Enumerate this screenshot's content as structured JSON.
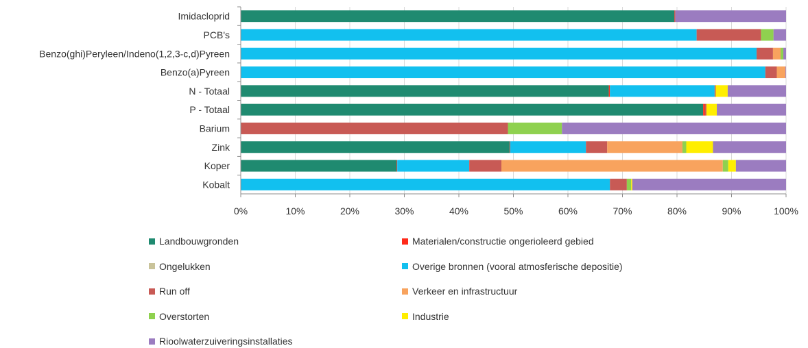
{
  "chart_data": {
    "type": "bar",
    "orientation": "horizontal",
    "stacked": "percent",
    "categories": [
      "Imidacloprid",
      "PCB's",
      "Benzo(ghi)Peryleen/Indeno(1,2,3-c,d)Pyreen",
      "Benzo(a)Pyreen",
      "N - Totaal",
      "P - Totaal",
      "Barium",
      "Zink",
      "Koper",
      "Kobalt"
    ],
    "series": [
      {
        "name": "Landbouwgronden",
        "color": "#1f8a70",
        "values": [
          79.5,
          0,
          0,
          0,
          67.5,
          84.8,
          0,
          49.3,
          28.6,
          0
        ]
      },
      {
        "name": "Materialen/constructie ongerioleerd gebied",
        "color": "#ff2a1a",
        "values": [
          0,
          0,
          0,
          0,
          0.2,
          0.3,
          0,
          0.1,
          0.1,
          0
        ]
      },
      {
        "name": "Ongelukken",
        "color": "#c9c39a",
        "values": [
          0,
          0,
          0,
          0,
          0,
          0,
          0,
          0,
          0,
          0
        ]
      },
      {
        "name": "Overige bronnen (vooral atmosferische depositie)",
        "color": "#12c0ef",
        "values": [
          0,
          83.6,
          94.6,
          96.2,
          19.2,
          0,
          0,
          13.9,
          13.2,
          67.7
        ]
      },
      {
        "name": "Run off",
        "color": "#c85a55",
        "values": [
          0.2,
          11.8,
          3.0,
          2.1,
          0.2,
          0.3,
          49.0,
          3.9,
          5.9,
          3.1
        ]
      },
      {
        "name": "Verkeer en infrastructuur",
        "color": "#f8a35e",
        "values": [
          0,
          0,
          1.4,
          1.6,
          0,
          0,
          0,
          13.8,
          40.6,
          0
        ]
      },
      {
        "name": "Overstorten",
        "color": "#8fd14f",
        "values": [
          0,
          2.3,
          0.5,
          0,
          0,
          0,
          9.9,
          0.7,
          1.0,
          0.8
        ]
      },
      {
        "name": "Industrie",
        "color": "#ffee00",
        "values": [
          0,
          0,
          0,
          0,
          2.2,
          1.9,
          0,
          4.9,
          1.4,
          0.2
        ]
      },
      {
        "name": "Rioolwaterzuiveringsinstallaties",
        "color": "#9b7cc0",
        "values": [
          20.3,
          2.3,
          0.5,
          0.1,
          10.7,
          12.7,
          41.1,
          13.4,
          9.2,
          28.2
        ]
      }
    ],
    "xticks": [
      "0%",
      "10%",
      "20%",
      "30%",
      "40%",
      "50%",
      "60%",
      "70%",
      "80%",
      "90%",
      "100%"
    ],
    "xlim": [
      0,
      100
    ],
    "grid": true,
    "legend": "bottom"
  }
}
